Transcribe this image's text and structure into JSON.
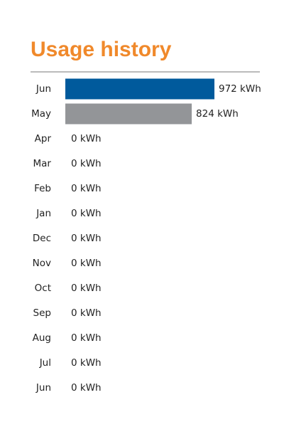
{
  "chart_data": {
    "type": "bar",
    "orientation": "horizontal",
    "title": "Usage history",
    "categories": [
      "Jun",
      "May",
      "Apr",
      "Mar",
      "Feb",
      "Jan",
      "Dec",
      "Nov",
      "Oct",
      "Sep",
      "Aug",
      "Jul",
      "Jun"
    ],
    "values": [
      972,
      824,
      0,
      0,
      0,
      0,
      0,
      0,
      0,
      0,
      0,
      0,
      0
    ],
    "value_labels": [
      "972 kWh",
      "824 kWh",
      "0 kWh",
      "0 kWh",
      "0 kWh",
      "0 kWh",
      "0 kWh",
      "0 kWh",
      "0 kWh",
      "0 kWh",
      "0 kWh",
      "0 kWh",
      "0 kWh"
    ],
    "colors": [
      "#005a9c",
      "#939598",
      "#939598",
      "#939598",
      "#939598",
      "#939598",
      "#939598",
      "#939598",
      "#939598",
      "#939598",
      "#939598",
      "#939598",
      "#939598"
    ]
  }
}
